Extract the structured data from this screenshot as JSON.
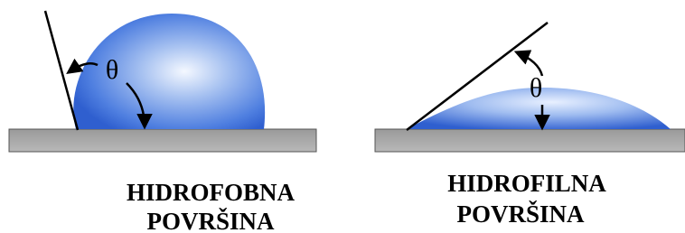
{
  "panels": [
    {
      "angle_symbol": "θ",
      "label": [
        "HIDROFOBNA",
        "POVRŠINA"
      ]
    },
    {
      "angle_symbol": "θ",
      "label": [
        "HIDROFILNA",
        "POVRŠINA"
      ]
    }
  ]
}
